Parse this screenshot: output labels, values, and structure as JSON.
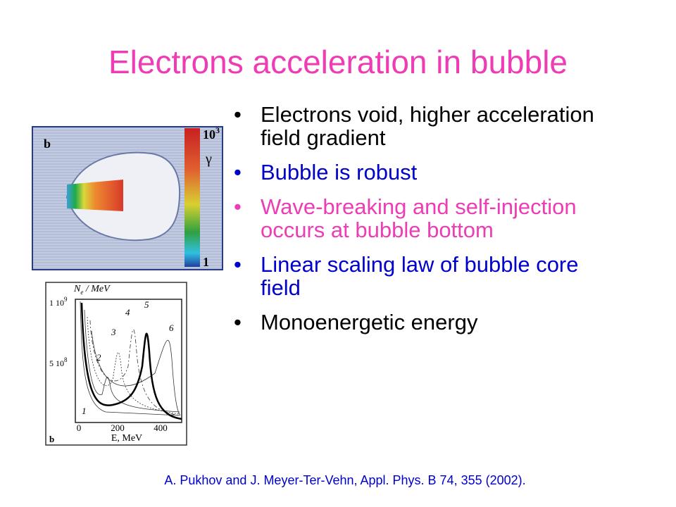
{
  "title": {
    "text": "Electrons acceleration in bubble",
    "color": "#ee3cb4"
  },
  "bullets": [
    {
      "text": "Electrons void, higher acceleration field gradient",
      "color": "#000000"
    },
    {
      "text": "Bubble is robust",
      "color": "#0000cc"
    },
    {
      "text": "Wave-breaking and self-injection occurs at bubble bottom",
      "color": "#ee3cb4"
    },
    {
      "text": "Linear scaling law of bubble core field",
      "color": "#0000cc"
    },
    {
      "text": "Monoenergetic energy",
      "color": "#000000"
    }
  ],
  "citation": {
    "text": "A. Pukhov and J. Meyer-Ter-Vehn, Appl. Phys. B 74, 355 (2002).",
    "color": "#0000cc"
  },
  "figures": {
    "bubble": {
      "panel": "b",
      "colorbar_top": "10",
      "colorbar_top_exp": "3",
      "colorbar_label": "γ",
      "colorbar_bottom": "1"
    },
    "spectrum": {
      "panel": "b",
      "y_label": "N",
      "y_label_sub": "e",
      "y_label_unit": " / MeV",
      "y_tick_labels": [
        {
          "base": "1 10",
          "exp": "9"
        },
        {
          "base": "5 10",
          "exp": "8"
        }
      ],
      "x_tick_labels": [
        "0",
        "200",
        "400"
      ],
      "x_label": "E, MeV",
      "curve_labels": [
        "1",
        "2",
        "3",
        "4",
        "5",
        "6"
      ]
    }
  }
}
